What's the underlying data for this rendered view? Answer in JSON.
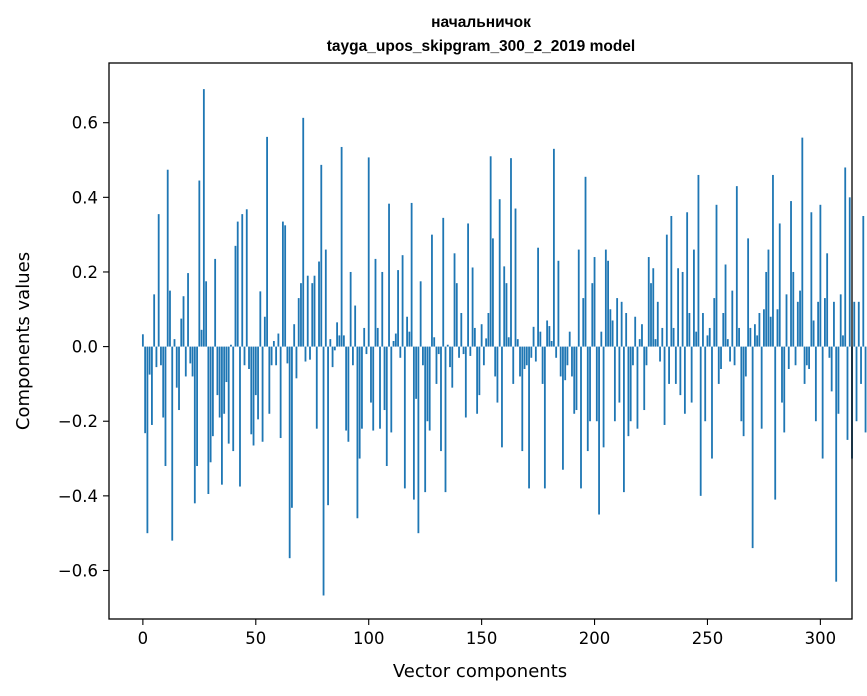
{
  "chart_data": {
    "type": "bar",
    "title": "начальничок",
    "subtitle": "tayga_upos_skipgram_300_2_2019 model",
    "xlabel": "Vector components",
    "ylabel": "Components values",
    "xlim": [
      -15,
      314
    ],
    "ylim": [
      -0.73,
      0.76
    ],
    "xticks": [
      0,
      50,
      100,
      150,
      200,
      250,
      300
    ],
    "yticks": [
      -0.6,
      -0.4,
      -0.2,
      0.0,
      0.2,
      0.4,
      0.6
    ],
    "xtick_labels": [
      "0",
      "50",
      "100",
      "150",
      "200",
      "250",
      "300"
    ],
    "ytick_labels": [
      "−0.6",
      "−0.4",
      "−0.2",
      "0.0",
      "0.2",
      "0.4",
      "0.6"
    ],
    "bar_color": "#1f77b4",
    "grid": false,
    "values": [
      0.033,
      -0.232,
      -0.5,
      -0.075,
      -0.21,
      0.14,
      -0.055,
      0.355,
      -0.05,
      -0.19,
      -0.32,
      0.474,
      0.15,
      -0.52,
      0.02,
      -0.11,
      -0.17,
      0.075,
      0.135,
      -0.08,
      0.197,
      -0.045,
      -0.08,
      -0.42,
      -0.32,
      0.445,
      0.045,
      0.69,
      0.175,
      -0.395,
      -0.31,
      -0.24,
      0.235,
      -0.13,
      -0.19,
      -0.37,
      -0.18,
      -0.095,
      -0.26,
      0.005,
      -0.28,
      0.27,
      0.335,
      -0.375,
      0.355,
      -0.05,
      0.368,
      -0.06,
      -0.235,
      -0.265,
      -0.13,
      -0.195,
      0.148,
      -0.255,
      0.08,
      0.562,
      -0.18,
      -0.05,
      0.015,
      -0.05,
      0.035,
      -0.245,
      0.335,
      0.325,
      -0.045,
      -0.567,
      -0.432,
      0.06,
      -0.085,
      0.13,
      0.17,
      0.613,
      -0.04,
      0.19,
      -0.035,
      0.17,
      0.19,
      -0.22,
      0.228,
      0.487,
      -0.667,
      0.26,
      -0.425,
      0.02,
      -0.055,
      -0.01,
      0.065,
      0.03,
      0.535,
      0.03,
      -0.225,
      -0.255,
      0.2,
      -0.05,
      0.11,
      -0.46,
      -0.3,
      -0.22,
      0.05,
      -0.02,
      0.507,
      -0.15,
      -0.225,
      0.235,
      0.05,
      -0.22,
      0.2,
      -0.17,
      -0.32,
      0.383,
      -0.23,
      0.015,
      0.035,
      0.205,
      -0.03,
      0.245,
      -0.38,
      0.08,
      0.04,
      0.385,
      -0.41,
      -0.14,
      -0.5,
      0.175,
      -0.05,
      -0.39,
      -0.2,
      -0.225,
      0.3,
      0.025,
      -0.1,
      -0.02,
      -0.28,
      0.345,
      -0.39,
      0.005,
      -0.055,
      -0.11,
      0.25,
      0.17,
      -0.03,
      0.09,
      -0.02,
      -0.19,
      0.33,
      -0.025,
      0.212,
      0.05,
      -0.18,
      -0.13,
      0.06,
      -0.05,
      0.022,
      0.09,
      0.51,
      0.29,
      -0.08,
      -0.15,
      0.395,
      -0.27,
      0.215,
      0.17,
      0.025,
      0.505,
      -0.1,
      0.37,
      0.02,
      -0.08,
      -0.28,
      -0.06,
      -0.05,
      -0.38,
      -0.03,
      0.053,
      -0.04,
      0.265,
      0.04,
      -0.1,
      -0.38,
      0.07,
      0.055,
      0.015,
      0.53,
      -0.03,
      0.23,
      -0.08,
      -0.33,
      -0.09,
      -0.05,
      0.04,
      -0.08,
      -0.18,
      -0.17,
      0.26,
      -0.38,
      0.13,
      0.455,
      -0.28,
      -0.2,
      0.17,
      0.24,
      -0.2,
      -0.45,
      0.04,
      -0.27,
      0.26,
      0.23,
      0.1,
      0.07,
      -0.2,
      0.13,
      -0.15,
      0.12,
      -0.39,
      0.09,
      -0.24,
      -0.2,
      -0.05,
      0.08,
      -0.22,
      0.02,
      0.06,
      -0.17,
      -0.05,
      0.24,
      0.17,
      0.21,
      0.02,
      0.12,
      -0.04,
      0.05,
      -0.21,
      0.3,
      -0.1,
      0.35,
      0.05,
      -0.1,
      0.21,
      -0.13,
      0.2,
      -0.18,
      0.36,
      0.09,
      -0.15,
      0.26,
      0.04,
      0.46,
      -0.4,
      0.09,
      -0.2,
      0.03,
      0.05,
      -0.3,
      0.13,
      0.38,
      -0.1,
      -0.06,
      0.09,
      0.22,
      0.02,
      -0.04,
      0.15,
      -0.05,
      0.43,
      0.05,
      -0.2,
      -0.24,
      -0.08,
      0.29,
      0.05,
      -0.54,
      0.06,
      0.03,
      0.09,
      -0.22,
      0.1,
      0.2,
      0.26,
      0.08,
      0.46,
      -0.41,
      0.1,
      0.33,
      -0.15,
      -0.23,
      0.14,
      -0.06,
      0.39,
      0.2,
      -0.05,
      0.12,
      0.15,
      0.56,
      -0.1,
      -0.05,
      -0.06,
      0.36,
      0.07,
      -0.2,
      0.12,
      0.38,
      -0.3,
      0.13,
      0.25,
      -0.03,
      -0.12,
      0.12,
      -0.63,
      -0.18,
      0.14,
      0.03,
      0.48,
      -0.25,
      0.4,
      -0.3,
      0.12,
      -0.2,
      0.12,
      -0.1,
      0.35,
      -0.23
    ]
  }
}
